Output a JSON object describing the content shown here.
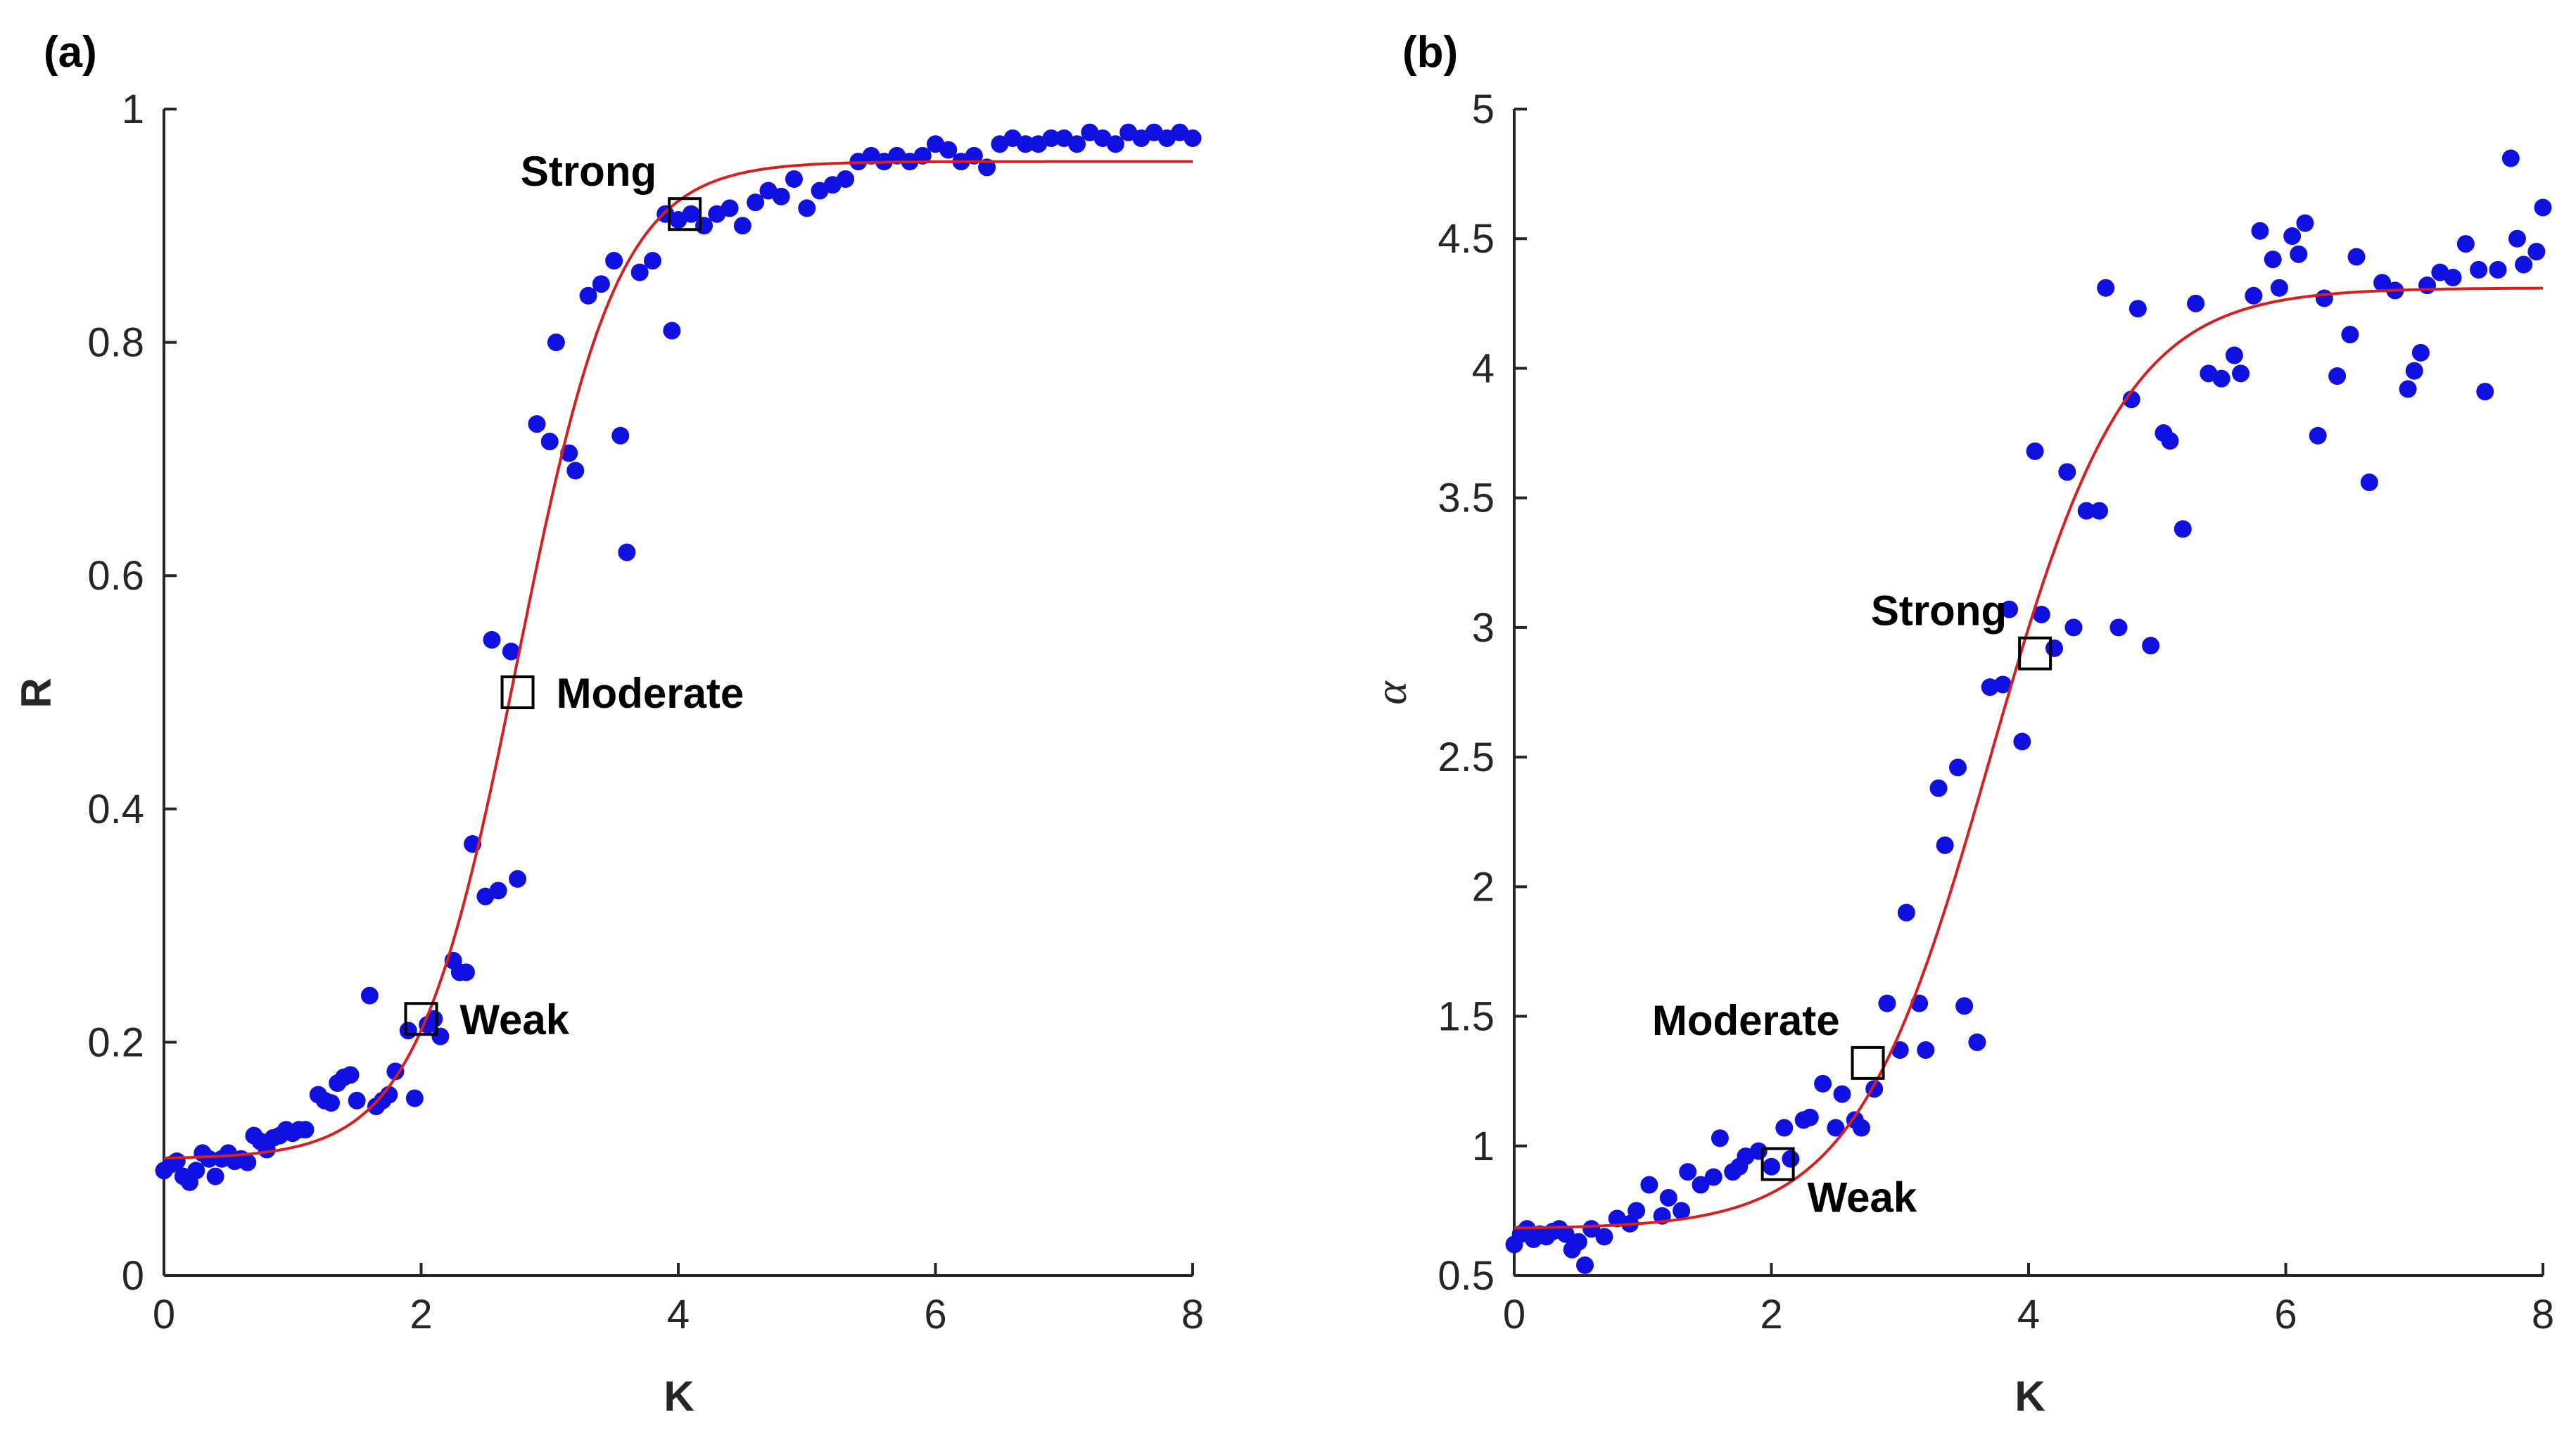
{
  "colors": {
    "points": "#1010e0",
    "fit": "#d62020",
    "axis": "#262626",
    "marker": "#000000"
  },
  "chart_data": [
    {
      "type": "scatter",
      "panel_label": "(a)",
      "xlabel": "K",
      "ylabel": "R",
      "xlim": [
        0,
        8
      ],
      "ylim": [
        0,
        1
      ],
      "xticks": [
        0,
        2,
        4,
        6,
        8
      ],
      "yticks": [
        0,
        0.2,
        0.4,
        0.6,
        0.8,
        1
      ],
      "ytick_labels": [
        "0",
        "0.2",
        "0.4",
        "0.6",
        "0.8",
        "1"
      ],
      "grid": false,
      "fit": {
        "type": "logistic",
        "base": 0.1,
        "top": 0.955,
        "k": 2.55,
        "x0": 2.75
      },
      "points": [
        [
          0.0,
          0.09
        ],
        [
          0.05,
          0.095
        ],
        [
          0.1,
          0.098
        ],
        [
          0.15,
          0.085
        ],
        [
          0.2,
          0.08
        ],
        [
          0.25,
          0.09
        ],
        [
          0.3,
          0.105
        ],
        [
          0.35,
          0.1
        ],
        [
          0.4,
          0.085
        ],
        [
          0.45,
          0.1
        ],
        [
          0.5,
          0.105
        ],
        [
          0.55,
          0.098
        ],
        [
          0.6,
          0.1
        ],
        [
          0.65,
          0.097
        ],
        [
          0.7,
          0.12
        ],
        [
          0.75,
          0.115
        ],
        [
          0.8,
          0.108
        ],
        [
          0.85,
          0.118
        ],
        [
          0.9,
          0.12
        ],
        [
          0.95,
          0.125
        ],
        [
          1.0,
          0.122
        ],
        [
          1.05,
          0.125
        ],
        [
          1.1,
          0.125
        ],
        [
          1.2,
          0.155
        ],
        [
          1.25,
          0.15
        ],
        [
          1.3,
          0.148
        ],
        [
          1.35,
          0.165
        ],
        [
          1.4,
          0.17
        ],
        [
          1.45,
          0.172
        ],
        [
          1.5,
          0.15
        ],
        [
          1.6,
          0.24
        ],
        [
          1.65,
          0.145
        ],
        [
          1.7,
          0.15
        ],
        [
          1.75,
          0.155
        ],
        [
          1.8,
          0.175
        ],
        [
          1.9,
          0.21
        ],
        [
          1.95,
          0.152
        ],
        [
          2.05,
          0.215
        ],
        [
          2.1,
          0.22
        ],
        [
          2.15,
          0.205
        ],
        [
          2.25,
          0.27
        ],
        [
          2.3,
          0.26
        ],
        [
          2.35,
          0.26
        ],
        [
          2.4,
          0.37
        ],
        [
          2.5,
          0.325
        ],
        [
          2.55,
          0.545
        ],
        [
          2.6,
          0.33
        ],
        [
          2.7,
          0.535
        ],
        [
          2.75,
          0.34
        ],
        [
          2.9,
          0.73
        ],
        [
          3.0,
          0.715
        ],
        [
          3.05,
          0.8
        ],
        [
          3.15,
          0.705
        ],
        [
          3.2,
          0.69
        ],
        [
          3.3,
          0.84
        ],
        [
          3.4,
          0.85
        ],
        [
          3.5,
          0.87
        ],
        [
          3.55,
          0.72
        ],
        [
          3.6,
          0.62
        ],
        [
          3.7,
          0.86
        ],
        [
          3.8,
          0.87
        ],
        [
          3.9,
          0.91
        ],
        [
          3.95,
          0.81
        ],
        [
          4.0,
          0.905
        ],
        [
          4.1,
          0.91
        ],
        [
          4.2,
          0.9
        ],
        [
          4.3,
          0.91
        ],
        [
          4.4,
          0.915
        ],
        [
          4.5,
          0.9
        ],
        [
          4.6,
          0.92
        ],
        [
          4.7,
          0.93
        ],
        [
          4.8,
          0.925
        ],
        [
          4.9,
          0.94
        ],
        [
          5.0,
          0.915
        ],
        [
          5.1,
          0.93
        ],
        [
          5.2,
          0.935
        ],
        [
          5.3,
          0.94
        ],
        [
          5.4,
          0.955
        ],
        [
          5.5,
          0.96
        ],
        [
          5.6,
          0.955
        ],
        [
          5.7,
          0.96
        ],
        [
          5.8,
          0.955
        ],
        [
          5.9,
          0.96
        ],
        [
          6.0,
          0.97
        ],
        [
          6.1,
          0.965
        ],
        [
          6.2,
          0.955
        ],
        [
          6.3,
          0.96
        ],
        [
          6.4,
          0.95
        ],
        [
          6.5,
          0.97
        ],
        [
          6.6,
          0.975
        ],
        [
          6.7,
          0.97
        ],
        [
          6.8,
          0.97
        ],
        [
          6.9,
          0.975
        ],
        [
          7.0,
          0.975
        ],
        [
          7.1,
          0.97
        ],
        [
          7.2,
          0.98
        ],
        [
          7.3,
          0.975
        ],
        [
          7.4,
          0.97
        ],
        [
          7.5,
          0.98
        ],
        [
          7.6,
          0.975
        ],
        [
          7.7,
          0.98
        ],
        [
          7.8,
          0.975
        ],
        [
          7.9,
          0.98
        ],
        [
          8.0,
          0.975
        ]
      ],
      "annotations": [
        {
          "label": "Weak",
          "x": 2.0,
          "y": 0.22,
          "anchor": "right"
        },
        {
          "label": "Moderate",
          "x": 2.75,
          "y": 0.5,
          "anchor": "right"
        },
        {
          "label": "Strong",
          "x": 4.05,
          "y": 0.91,
          "anchor": "above-left"
        }
      ]
    },
    {
      "type": "scatter",
      "panel_label": "(b)",
      "xlabel": "K",
      "ylabel": "α",
      "xlim": [
        0,
        8
      ],
      "ylim": [
        0.5,
        5
      ],
      "xticks": [
        0,
        2,
        4,
        6,
        8
      ],
      "yticks": [
        0.5,
        1,
        1.5,
        2,
        2.5,
        3,
        3.5,
        4,
        4.5,
        5
      ],
      "ytick_labels": [
        "0.5",
        "1",
        "1.5",
        "2",
        "2.5",
        "3",
        "3.5",
        "4",
        "4.5",
        "5"
      ],
      "grid": false,
      "fit": {
        "type": "logistic",
        "base": 0.68,
        "top": 4.31,
        "k": 1.9,
        "x0": 3.7
      },
      "points": [
        [
          0.0,
          0.62
        ],
        [
          0.05,
          0.66
        ],
        [
          0.1,
          0.68
        ],
        [
          0.15,
          0.64
        ],
        [
          0.2,
          0.66
        ],
        [
          0.25,
          0.65
        ],
        [
          0.3,
          0.67
        ],
        [
          0.35,
          0.68
        ],
        [
          0.4,
          0.66
        ],
        [
          0.45,
          0.6
        ],
        [
          0.5,
          0.63
        ],
        [
          0.55,
          0.54
        ],
        [
          0.6,
          0.68
        ],
        [
          0.7,
          0.65
        ],
        [
          0.8,
          0.72
        ],
        [
          0.9,
          0.7
        ],
        [
          0.95,
          0.75
        ],
        [
          1.05,
          0.85
        ],
        [
          1.15,
          0.73
        ],
        [
          1.2,
          0.8
        ],
        [
          1.3,
          0.75
        ],
        [
          1.35,
          0.9
        ],
        [
          1.45,
          0.85
        ],
        [
          1.55,
          0.88
        ],
        [
          1.6,
          1.03
        ],
        [
          1.7,
          0.9
        ],
        [
          1.75,
          0.92
        ],
        [
          1.8,
          0.96
        ],
        [
          1.9,
          0.98
        ],
        [
          2.0,
          0.92
        ],
        [
          2.1,
          1.07
        ],
        [
          2.15,
          0.95
        ],
        [
          2.25,
          1.1
        ],
        [
          2.3,
          1.11
        ],
        [
          2.4,
          1.24
        ],
        [
          2.5,
          1.07
        ],
        [
          2.55,
          1.2
        ],
        [
          2.65,
          1.1
        ],
        [
          2.7,
          1.07
        ],
        [
          2.8,
          1.22
        ],
        [
          2.9,
          1.55
        ],
        [
          3.0,
          1.37
        ],
        [
          3.05,
          1.9
        ],
        [
          3.15,
          1.55
        ],
        [
          3.2,
          1.37
        ],
        [
          3.3,
          2.38
        ],
        [
          3.35,
          2.16
        ],
        [
          3.45,
          2.46
        ],
        [
          3.5,
          1.54
        ],
        [
          3.6,
          1.4
        ],
        [
          3.7,
          2.77
        ],
        [
          3.8,
          2.78
        ],
        [
          3.85,
          3.07
        ],
        [
          3.95,
          2.56
        ],
        [
          4.05,
          3.68
        ],
        [
          4.1,
          3.05
        ],
        [
          4.2,
          2.92
        ],
        [
          4.3,
          3.6
        ],
        [
          4.35,
          3.0
        ],
        [
          4.45,
          3.45
        ],
        [
          4.55,
          3.45
        ],
        [
          4.6,
          4.31
        ],
        [
          4.7,
          3.0
        ],
        [
          4.8,
          3.88
        ],
        [
          4.85,
          4.23
        ],
        [
          4.95,
          2.93
        ],
        [
          5.05,
          3.75
        ],
        [
          5.1,
          3.72
        ],
        [
          5.2,
          3.38
        ],
        [
          5.3,
          4.25
        ],
        [
          5.4,
          3.98
        ],
        [
          5.5,
          3.96
        ],
        [
          5.6,
          4.05
        ],
        [
          5.65,
          3.98
        ],
        [
          5.75,
          4.28
        ],
        [
          5.8,
          4.53
        ],
        [
          5.9,
          4.42
        ],
        [
          5.95,
          4.31
        ],
        [
          6.05,
          4.51
        ],
        [
          6.1,
          4.44
        ],
        [
          6.15,
          4.56
        ],
        [
          6.25,
          3.74
        ],
        [
          6.3,
          4.27
        ],
        [
          6.4,
          3.97
        ],
        [
          6.5,
          4.13
        ],
        [
          6.55,
          4.43
        ],
        [
          6.65,
          3.56
        ],
        [
          6.75,
          4.33
        ],
        [
          6.85,
          4.3
        ],
        [
          6.95,
          3.92
        ],
        [
          7.0,
          3.99
        ],
        [
          7.05,
          4.06
        ],
        [
          7.1,
          4.32
        ],
        [
          7.2,
          4.37
        ],
        [
          7.3,
          4.35
        ],
        [
          7.4,
          4.48
        ],
        [
          7.5,
          4.38
        ],
        [
          7.55,
          3.91
        ],
        [
          7.65,
          4.38
        ],
        [
          7.75,
          4.81
        ],
        [
          7.8,
          4.5
        ],
        [
          7.85,
          4.4
        ],
        [
          7.95,
          4.45
        ],
        [
          8.0,
          4.62
        ]
      ],
      "annotations": [
        {
          "label": "Weak",
          "x": 2.05,
          "y": 0.93,
          "anchor": "below-right"
        },
        {
          "label": "Moderate",
          "x": 2.75,
          "y": 1.32,
          "anchor": "above-left"
        },
        {
          "label": "Strong",
          "x": 4.05,
          "y": 2.9,
          "anchor": "above-left"
        }
      ]
    }
  ]
}
